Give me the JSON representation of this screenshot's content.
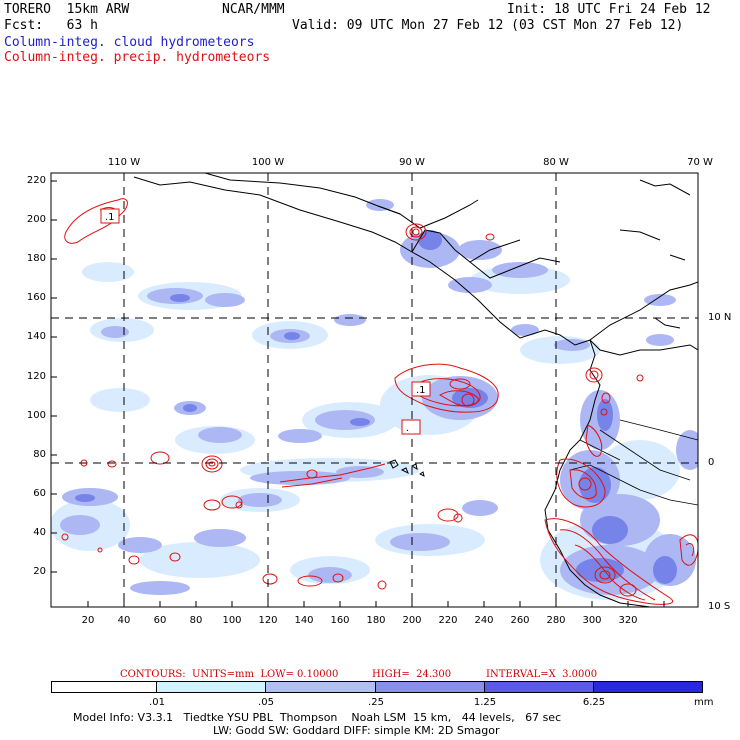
{
  "header": {
    "model": "TORERO  15km ARW",
    "org": "NCAR/MMM",
    "init": "Init: 18 UTC Fri 24 Feb 12",
    "fcst": "Fcst:   63 h",
    "valid": "Valid: 09 UTC Mon 27 Feb 12 (03 CST Mon 27 Feb 12)",
    "legend_blue": "Column-integ. cloud hydrometeors",
    "legend_red": "Column-integ. precip. hydrometeors"
  },
  "map": {
    "top_lon_labels": [
      "110 W",
      "100 W",
      "90 W",
      "80 W",
      "70 W"
    ],
    "right_lat_labels": [
      "10 N",
      "0",
      "10 S"
    ],
    "y_grid_labels": [
      "220",
      "200",
      "180",
      "160",
      "140",
      "120",
      "100",
      "80",
      "60",
      "40",
      "20"
    ],
    "x_grid_labels": [
      "20",
      "40",
      "60",
      "80",
      "100",
      "120",
      "140",
      "160",
      "180",
      "200",
      "220",
      "240",
      "260",
      "280",
      "300",
      "320"
    ],
    "contour_labels": [
      ".1",
      ".1",
      "."
    ],
    "colors": {
      "cloud_light": "#c8e4ff",
      "cloud_mid": "#a8b4f4",
      "cloud_dark": "#7080ec",
      "precip": "#e01010",
      "coast": "#000000"
    }
  },
  "contours_info": {
    "units": "CONTOURS:  UNITS=mm  LOW= 0.10000",
    "high": "HIGH=  24.300",
    "interval": "INTERVAL=X  3.0000"
  },
  "colorbar": {
    "labels": [
      ".01",
      ".05",
      ".25",
      "1.25",
      "6.25",
      "mm"
    ],
    "colors": [
      "#ffffff",
      "#d0f4ff",
      "#b0c0f4",
      "#8890ea",
      "#5a5ae6",
      "#2828e0"
    ]
  },
  "footer": {
    "line1": "Model Info: V3.3.1   Tiedtke YSU PBL  Thompson    Noah LSM  15 km,   44 levels,   67 sec",
    "line2": "LW: Godd SW: Goddard DIFF: simple KM: 2D Smagor"
  }
}
